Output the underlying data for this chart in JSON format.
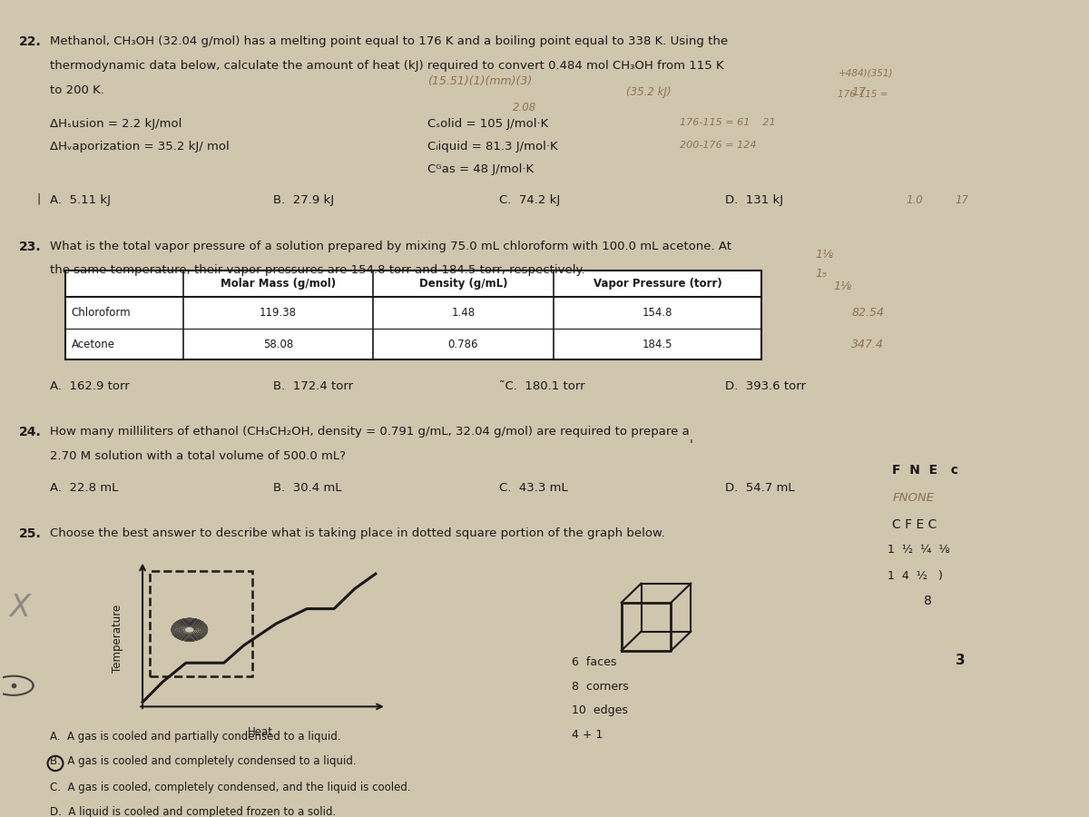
{
  "bg_color": "#d0c5ad",
  "text_color": "#1a1a1a",
  "q22_num": "22.",
  "q22_line1": "Methanol, CH₃OH (32.04 g/mol) has a melting point equal to 176 K and a boiling point equal to 338 K. Using the",
  "q22_line2": "thermodynamic data below, calculate the amount of heat (kJ) required to convert 0.484 mol CH₃OH from 115 K",
  "q22_line3": "to 200 K.",
  "q22_hfusion": "ΔHₛusion = 2.2 kJ/mol",
  "q22_hvap": "ΔHᵥaporization = 35.2 kJ/ mol",
  "q22_csolid": "Cₛolid = 105 J/mol·K",
  "q22_cliquid": "Cₗiquid = 81.3 J/mol·K",
  "q22_cgas": "Cᴳas = 48 J/mol·K",
  "q22_answers": [
    "A.  5.11 kJ",
    "B.  27.9 kJ",
    "C.  74.2 kJ",
    "D.  131 kJ"
  ],
  "q23_num": "23.",
  "q23_line1": "What is the total vapor pressure of a solution prepared by mixing 75.0 mL chloroform with 100.0 mL acetone. At",
  "q23_line2": "the same temperature, their vapor pressures are 154.8 torr and 184.5 torr, respectively.",
  "q23_table_headers": [
    "",
    "Molar Mass (g/mol)",
    "Density (g/mL)",
    "Vapor Pressure (torr)"
  ],
  "q23_row1": [
    "Chloroform",
    "119.38",
    "1.48",
    "154.8"
  ],
  "q23_row2": [
    "Acetone",
    "58.08",
    "0.786",
    "184.5"
  ],
  "q23_answers": [
    "A.  162.9 torr",
    "B.  172.4 torr",
    "˜C.  180.1 torr",
    "D.  393.6 torr"
  ],
  "q24_num": "24.",
  "q24_line1": "How many milliliters of ethanol (CH₃CH₂OH, density = 0.791 g/mL, 32.04 g/mol) are required to prepare a",
  "q24_line2": "2.70 M solution with a total volume of 500.0 mL?",
  "q24_answers": [
    "A.  22.8 mL",
    "B.  30.4 mL",
    "C.  43.3 mL",
    "D.  54.7 mL"
  ],
  "q25_num": "25.",
  "q25_line1": "Choose the best answer to describe what is taking place in dotted square portion of the graph below.",
  "q25_answers": [
    "A.  A gas is cooled and partially condensed to a liquid.",
    "B.  A gas is cooled and completely condensed to a liquid.",
    "C.  A gas is cooled, completely condensed, and the liquid is cooled.",
    "D.  A liquid is cooled and completed frozen to a solid."
  ],
  "handwriting_color": "#8B7355",
  "handwriting2_color": "#6b6b6b"
}
